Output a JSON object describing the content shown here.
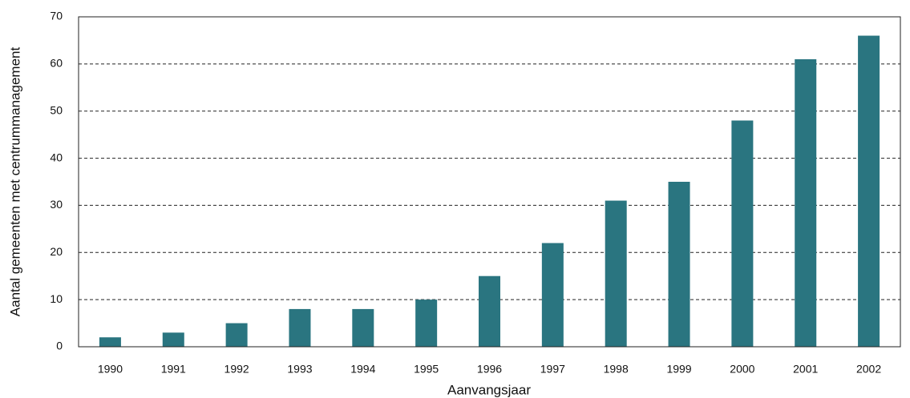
{
  "chart_data": {
    "type": "bar",
    "x_label": "Aanvangsjaar",
    "y_label": "Aantal gemeenten met centrummanagement",
    "categories": [
      "1990",
      "1991",
      "1992",
      "1993",
      "1994",
      "1995",
      "1996",
      "1997",
      "1998",
      "1999",
      "2000",
      "2001",
      "2002"
    ],
    "values": [
      2,
      3,
      5,
      8,
      8,
      10,
      15,
      22,
      31,
      35,
      48,
      61,
      66
    ],
    "color": "#2a7580",
    "ylim": [
      0,
      70
    ],
    "yticks": [
      0,
      10,
      20,
      30,
      40,
      50,
      60,
      70
    ],
    "grid": true
  }
}
